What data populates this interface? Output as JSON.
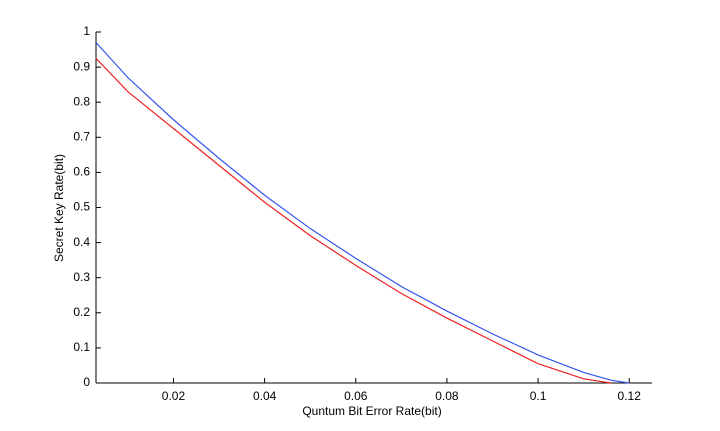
{
  "chart_data": {
    "type": "line",
    "x_label": "Quntum Bit Error Rate(bit)",
    "y_label": "Secret Key Rate(bit)",
    "x": [
      0.003,
      0.01,
      0.02,
      0.03,
      0.04,
      0.05,
      0.06,
      0.07,
      0.08,
      0.09,
      0.1,
      0.11,
      0.116,
      0.12
    ],
    "series": [
      {
        "color": "#3355ee",
        "values": [
          0.97,
          0.87,
          0.75,
          0.64,
          0.535,
          0.44,
          0.355,
          0.275,
          0.205,
          0.14,
          0.08,
          0.03,
          0.008,
          0
        ]
      },
      {
        "color": "#ee2222",
        "values": [
          0.925,
          0.83,
          0.725,
          0.62,
          0.515,
          0.42,
          0.335,
          0.255,
          0.185,
          0.12,
          0.055,
          0.012,
          0,
          null
        ]
      }
    ],
    "xlim": [
      0.003,
      0.125
    ],
    "ylim": [
      0,
      1
    ],
    "xticks": [
      0.02,
      0.04,
      0.06,
      0.08,
      0.1,
      0.12
    ],
    "yticks": [
      0,
      0.1,
      0.2,
      0.3,
      0.4,
      0.5,
      0.6,
      0.7,
      0.8,
      0.9,
      1
    ],
    "grid": false
  }
}
